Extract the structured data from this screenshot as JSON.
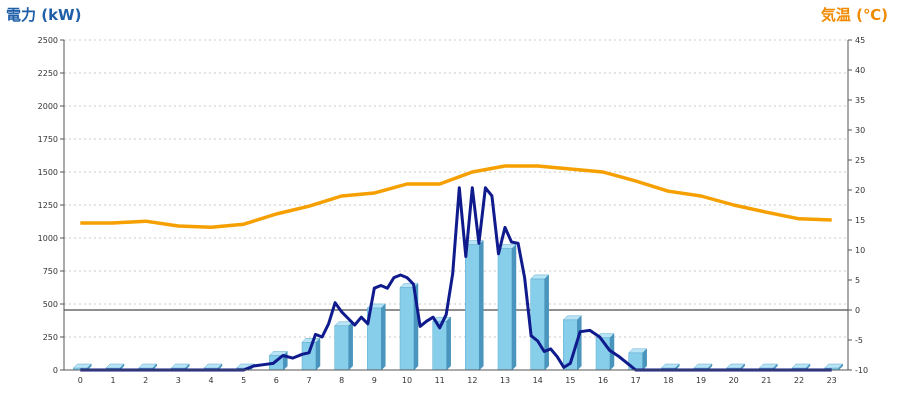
{
  "chart_data": {
    "type": "bar",
    "ylabel_left": "電力 (kW)",
    "ylabel_right": "気温 (℃)",
    "categories": [
      "0",
      "1",
      "2",
      "3",
      "4",
      "5",
      "6",
      "7",
      "8",
      "9",
      "10",
      "11",
      "12",
      "13",
      "14",
      "15",
      "16",
      "17",
      "18",
      "19",
      "20",
      "21",
      "22",
      "23"
    ],
    "ylim_left": [
      0,
      2500
    ],
    "ylim_right": [
      -10,
      45
    ],
    "left_ticks": [
      "0",
      "250",
      "500",
      "750",
      "1000",
      "1250",
      "1500",
      "1750",
      "2000",
      "2250",
      "2500"
    ],
    "right_ticks": [
      "-10",
      "-5",
      "0",
      "5",
      "10",
      "15",
      "20",
      "25",
      "30",
      "35",
      "40",
      "45"
    ],
    "grid": "horizontal dashed",
    "series": [
      {
        "kind": "bar",
        "axis": "left",
        "color": "#87ceeb",
        "values": [
          15,
          15,
          15,
          15,
          15,
          15,
          110,
          210,
          335,
          470,
          625,
          370,
          950,
          920,
          690,
          380,
          245,
          130,
          15,
          15,
          15,
          15,
          15,
          15
        ]
      },
      {
        "kind": "line",
        "axis": "left",
        "color": "#0f1a8c",
        "x": [
          0,
          0.5,
          1,
          1.5,
          2,
          2.5,
          3,
          3.5,
          4,
          4.5,
          5,
          5.3,
          5.6,
          5.9,
          6.2,
          6.5,
          6.8,
          7.0,
          7.2,
          7.4,
          7.6,
          7.8,
          8.0,
          8.2,
          8.4,
          8.6,
          8.8,
          9.0,
          9.2,
          9.4,
          9.6,
          9.8,
          10.0,
          10.2,
          10.4,
          10.6,
          10.8,
          11.0,
          11.2,
          11.4,
          11.6,
          11.8,
          12.0,
          12.2,
          12.4,
          12.6,
          12.8,
          13.0,
          13.2,
          13.4,
          13.6,
          13.8,
          14.0,
          14.2,
          14.4,
          14.6,
          14.8,
          15.0,
          15.3,
          15.6,
          15.9,
          16.2,
          16.5,
          16.8,
          17.0,
          17.3,
          17.6,
          18,
          19,
          20,
          21,
          22,
          23
        ],
        "values": [
          0,
          0,
          0,
          0,
          0,
          0,
          0,
          0,
          0,
          0,
          0,
          30,
          40,
          50,
          110,
          90,
          120,
          130,
          270,
          250,
          350,
          510,
          440,
          390,
          340,
          400,
          350,
          620,
          640,
          620,
          700,
          720,
          700,
          650,
          330,
          370,
          400,
          320,
          420,
          730,
          1380,
          860,
          1380,
          960,
          1380,
          1320,
          880,
          1080,
          970,
          960,
          700,
          260,
          220,
          140,
          160,
          100,
          20,
          50,
          290,
          300,
          250,
          150,
          100,
          40,
          0,
          0,
          0,
          0,
          0,
          0,
          0,
          0,
          0
        ]
      },
      {
        "kind": "line",
        "axis": "right",
        "color": "#f5a000",
        "x": [
          0,
          1,
          2,
          3,
          4,
          5,
          6,
          7,
          8,
          9,
          10,
          11,
          12,
          13,
          14,
          15,
          16,
          17,
          18,
          19,
          20,
          21,
          22,
          23
        ],
        "values": [
          14.5,
          14.5,
          14.8,
          14.0,
          13.8,
          14.3,
          16.0,
          17.3,
          19.0,
          19.5,
          21.0,
          21.0,
          23.0,
          24.0,
          24.0,
          23.5,
          23.0,
          21.5,
          19.8,
          19.0,
          17.5,
          16.3,
          15.2,
          15.0
        ]
      }
    ]
  }
}
